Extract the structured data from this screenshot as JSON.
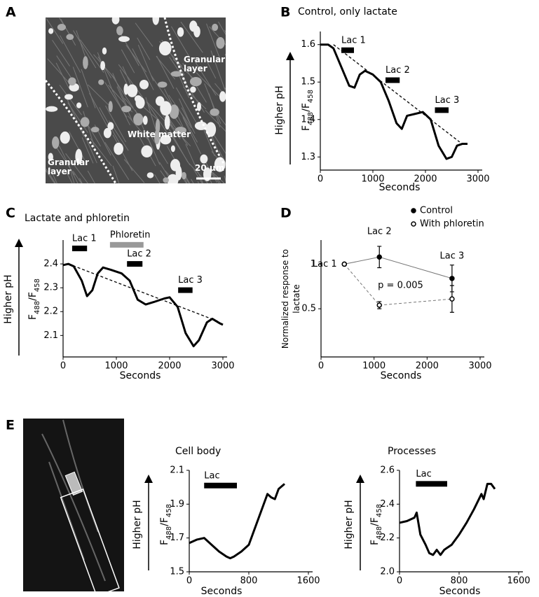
{
  "panel_labels": [
    "A",
    "B",
    "C",
    "D",
    "E"
  ],
  "images": [
    {
      "labels": [
        "Granular layer",
        "White matter",
        "Granular layer"
      ],
      "scale_bar": "20 µm"
    }
  ],
  "chart_data": [
    {
      "type": "line",
      "title": "Control, only lactate",
      "y_arrow_label": "Higher pH",
      "ylabel": [
        "F",
        "488",
        "/F",
        "458"
      ],
      "xlabel": "Seconds",
      "x": [
        0,
        150,
        250,
        400,
        550,
        650,
        750,
        850,
        1000,
        1150,
        1300,
        1450,
        1550,
        1650,
        1800,
        1950,
        2100,
        2250,
        2400,
        2500,
        2600,
        2700,
        2800
      ],
      "series": [
        {
          "color": "#000",
          "values": [
            1.6,
            1.6,
            1.59,
            1.54,
            1.49,
            1.485,
            1.52,
            1.53,
            1.52,
            1.5,
            1.45,
            1.39,
            1.375,
            1.41,
            1.415,
            1.42,
            1.4,
            1.33,
            1.295,
            1.3,
            1.33,
            1.335,
            1.335
          ]
        }
      ],
      "xlim": [
        0,
        3000
      ],
      "ylim": [
        1.265,
        1.635
      ],
      "xticks": [
        0,
        1000,
        2000,
        3000
      ],
      "yticks": [
        1.3,
        1.4,
        1.5,
        1.6
      ],
      "bars": [
        {
          "label": "Lac 1",
          "x": [
            400,
            640
          ],
          "y": 1.585,
          "color": "#000"
        },
        {
          "label": "Lac 2",
          "x": [
            1240,
            1510
          ],
          "y": 1.505,
          "color": "#000"
        },
        {
          "label": "Lac 3",
          "x": [
            2180,
            2440
          ],
          "y": 1.425,
          "color": "#000"
        }
      ],
      "trend": {
        "x": [
          250,
          2650
        ],
        "y": [
          1.6,
          1.34
        ]
      }
    },
    {
      "type": "line",
      "title": "Lactate and phloretin",
      "y_arrow_label": "Higher pH",
      "ylabel": [
        "F",
        "488",
        "/F",
        "458"
      ],
      "xlabel": "Seconds",
      "x": [
        0,
        100,
        200,
        350,
        450,
        550,
        650,
        750,
        900,
        1100,
        1250,
        1400,
        1550,
        1700,
        1900,
        2000,
        2150,
        2300,
        2450,
        2550,
        2700,
        2800,
        2950,
        3000
      ],
      "series": [
        {
          "color": "#000",
          "values": [
            2.395,
            2.4,
            2.39,
            2.33,
            2.265,
            2.29,
            2.36,
            2.385,
            2.375,
            2.36,
            2.33,
            2.25,
            2.23,
            2.24,
            2.255,
            2.26,
            2.22,
            2.11,
            2.055,
            2.08,
            2.155,
            2.17,
            2.15,
            2.145
          ]
        }
      ],
      "xlim": [
        0,
        3000
      ],
      "ylim": [
        2.01,
        2.5
      ],
      "xticks": [
        0,
        1000,
        2000,
        3000
      ],
      "yticks": [
        2.1,
        2.2,
        2.3,
        2.4
      ],
      "bars": [
        {
          "label": "Lac 1",
          "x": [
            170,
            450
          ],
          "y": 2.465,
          "color": "#000"
        },
        {
          "label": "Phloretin",
          "x": [
            880,
            1510
          ],
          "y": 2.48,
          "color": "#999"
        },
        {
          "label": "Lac 2",
          "x": [
            1200,
            1490
          ],
          "y": 2.4,
          "color": "#000"
        },
        {
          "label": "Lac 3",
          "x": [
            2160,
            2430
          ],
          "y": 2.29,
          "color": "#000"
        }
      ],
      "trend": {
        "x": [
          100,
          2900
        ],
        "y": [
          2.4,
          2.16
        ]
      }
    },
    {
      "type": "errorbar",
      "ylabel": "Normalized response to lactate",
      "xlabel": "Seconds",
      "legend": "top-right",
      "x": [
        440,
        1100,
        2470
      ],
      "series": [
        {
          "name": "Control",
          "color": "#000",
          "marker": "filled",
          "line_color": "#777",
          "dash": false,
          "values": [
            1,
            1.08,
            0.84
          ],
          "errors": [
            0,
            0.12,
            0.15
          ]
        },
        {
          "name": "With phloretin",
          "color": "#000",
          "marker": "open",
          "line_color": "#777",
          "dash": true,
          "values": [
            1,
            0.54,
            0.61
          ],
          "errors": [
            0,
            0.04,
            0.15
          ]
        }
      ],
      "point_labels": [
        "Lac 1",
        "Lac 2",
        "Lac 3"
      ],
      "annotation": "p = 0.005",
      "xlim": [
        0,
        3000
      ],
      "ylim": [
        -0.04,
        1.27
      ],
      "xticks": [
        0,
        1000,
        2000,
        3000
      ],
      "yticks": [
        0.5,
        1
      ]
    },
    {
      "type": "line",
      "title": "Cell body",
      "y_arrow_label": "Higher pH",
      "ylabel": [
        "F",
        "488",
        "/F",
        "458"
      ],
      "xlabel": "Seconds",
      "x": [
        0,
        100,
        200,
        300,
        400,
        500,
        550,
        600,
        700,
        800,
        850,
        950,
        1050,
        1100,
        1150,
        1200,
        1280
      ],
      "series": [
        {
          "color": "#000",
          "values": [
            1.67,
            1.69,
            1.7,
            1.66,
            1.62,
            1.59,
            1.58,
            1.59,
            1.62,
            1.66,
            1.72,
            1.84,
            1.96,
            1.94,
            1.93,
            1.99,
            2.02
          ]
        }
      ],
      "xlim": [
        0,
        1600
      ],
      "ylim": [
        1.5,
        2.1
      ],
      "xticks": [
        0,
        800,
        1600
      ],
      "yticks": [
        1.5,
        1.7,
        1.9,
        2.1
      ],
      "bars": [
        {
          "label": "Lac",
          "x": [
            200,
            640
          ],
          "y": 2.01,
          "color": "#000"
        }
      ]
    },
    {
      "type": "line",
      "title": "Processes",
      "y_arrow_label": "Higher pH",
      "ylabel": [
        "F",
        "488",
        "/F",
        "458"
      ],
      "xlabel": "Seconds",
      "x": [
        0,
        100,
        200,
        230,
        280,
        350,
        400,
        450,
        500,
        550,
        600,
        700,
        800,
        900,
        1000,
        1100,
        1130,
        1180,
        1230,
        1280
      ],
      "series": [
        {
          "color": "#000",
          "values": [
            2.29,
            2.3,
            2.32,
            2.35,
            2.22,
            2.16,
            2.11,
            2.1,
            2.13,
            2.1,
            2.13,
            2.16,
            2.22,
            2.29,
            2.37,
            2.46,
            2.43,
            2.52,
            2.52,
            2.49
          ]
        }
      ],
      "xlim": [
        0,
        1600
      ],
      "ylim": [
        2.0,
        2.6
      ],
      "xticks": [
        0,
        800,
        1600
      ],
      "yticks": [
        {
          "value": 2,
          "label": "2.0"
        },
        {
          "value": 2.2,
          "label": "2.2"
        },
        {
          "value": 2.4,
          "label": "2.4"
        },
        {
          "value": 2.6,
          "label": "2.6"
        }
      ],
      "bars": [
        {
          "label": "Lac",
          "x": [
            220,
            640
          ],
          "y": 2.52,
          "color": "#000"
        }
      ]
    }
  ]
}
